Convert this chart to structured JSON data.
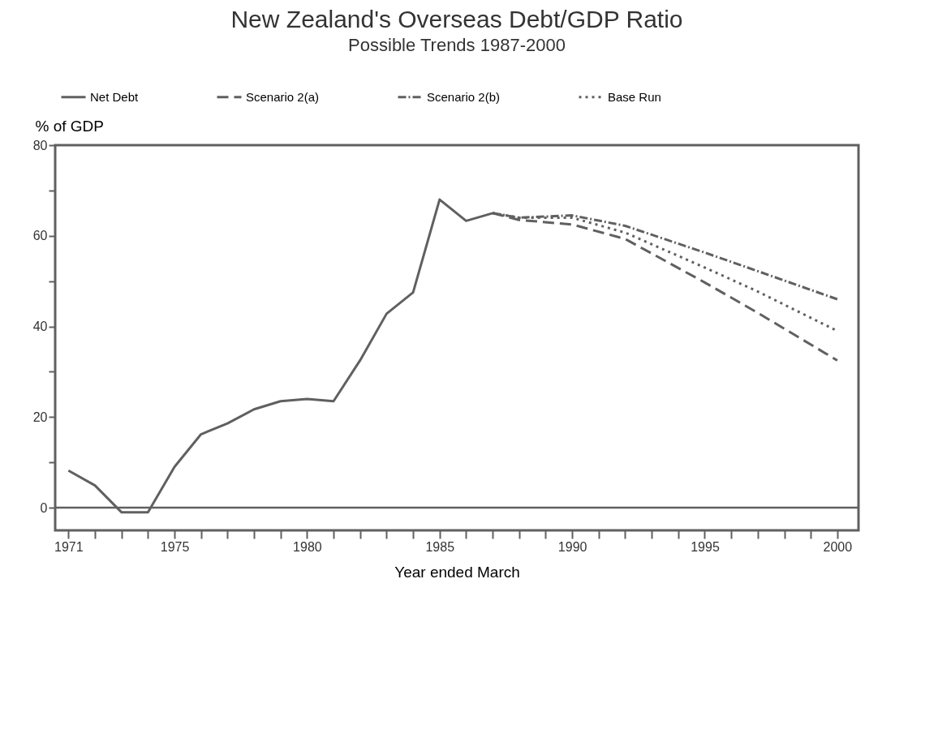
{
  "chart_data": {
    "type": "line",
    "title": "New Zealand's Overseas Debt/GDP Ratio",
    "subtitle": "Possible Trends 1987-2000",
    "xlabel": "Year ended March",
    "ylabel": "% of GDP",
    "xlim": [
      1970.5,
      2000.8
    ],
    "ylim": [
      -5,
      80
    ],
    "xticks": [
      1971,
      {
        "value": 1972,
        "label": null
      },
      {
        "value": 1973,
        "label": null
      },
      {
        "value": 1974,
        "label": null
      },
      1975,
      {
        "value": 1976,
        "label": null
      },
      {
        "value": 1977,
        "label": null
      },
      {
        "value": 1978,
        "label": null
      },
      {
        "value": 1979,
        "label": null
      },
      1980,
      {
        "value": 1981,
        "label": null
      },
      {
        "value": 1982,
        "label": null
      },
      {
        "value": 1983,
        "label": null
      },
      {
        "value": 1984,
        "label": null
      },
      1985,
      {
        "value": 1986,
        "label": null
      },
      {
        "value": 1987,
        "label": null
      },
      {
        "value": 1988,
        "label": null
      },
      {
        "value": 1989,
        "label": null
      },
      1990,
      {
        "value": 1991,
        "label": null
      },
      {
        "value": 1992,
        "label": null
      },
      {
        "value": 1993,
        "label": null
      },
      {
        "value": 1994,
        "label": null
      },
      1995,
      {
        "value": 1996,
        "label": null
      },
      {
        "value": 1997,
        "label": null
      },
      {
        "value": 1998,
        "label": null
      },
      {
        "value": 1999,
        "label": null
      },
      2000
    ],
    "yticks": [
      0,
      {
        "value": 10,
        "label": null
      },
      20,
      {
        "value": 30,
        "label": null
      },
      40,
      {
        "value": 50,
        "label": null
      },
      60,
      {
        "value": 70,
        "label": null
      },
      80
    ],
    "grid": false,
    "legend": "top",
    "marker": "none",
    "ref_lines": [
      {
        "axis": "y",
        "value": 0,
        "color": "#606060",
        "line_style": "solid"
      }
    ],
    "series": [
      {
        "name": "Net Debt",
        "color": "#606060",
        "line_style": "solid",
        "x": [
          1971,
          1972,
          1973,
          1974,
          1975,
          1976,
          1977,
          1978,
          1979,
          1980,
          1981,
          1982,
          1983,
          1984,
          1985,
          1986,
          1987
        ],
        "values": [
          8.2,
          4.9,
          -1,
          -1,
          9,
          16.2,
          18.6,
          21.7,
          23.5,
          24,
          23.5,
          32.5,
          42.8,
          47.5,
          68,
          63.3,
          65
        ]
      },
      {
        "name": "Scenario 2(a)",
        "color": "#606060",
        "line_style": "dashed",
        "x": [
          1987,
          1988,
          1990,
          1992,
          1995,
          1997,
          2000
        ],
        "values": [
          65,
          63.5,
          62.5,
          59.3,
          49.7,
          43,
          32.5
        ]
      },
      {
        "name": "Scenario 2(b)",
        "color": "#606060",
        "line_style": "dashdot",
        "x": [
          1987,
          1988,
          1990,
          1992,
          1995,
          1997,
          2000
        ],
        "values": [
          65,
          64,
          64.5,
          62.2,
          56.3,
          52.2,
          46
        ]
      },
      {
        "name": "Base Run",
        "color": "#606060",
        "line_style": "dotted",
        "x": [
          1987,
          1988,
          1990,
          1992,
          1995,
          1997,
          2000
        ],
        "values": [
          65,
          64,
          64,
          60.7,
          53,
          47.7,
          39
        ]
      }
    ]
  }
}
